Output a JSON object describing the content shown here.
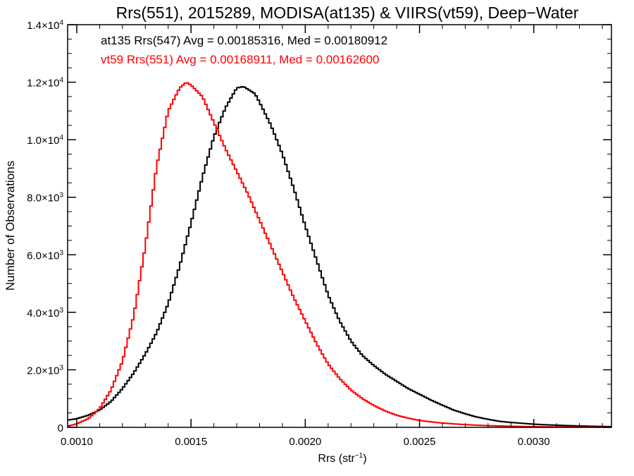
{
  "chart_data": {
    "type": "line",
    "title": "Rrs(551), 2015289, MODISA(at135) & VIIRS(vt59), Deep−Water",
    "xlabel_main": "Rrs (str",
    "xlabel_exp": "−1",
    "xlabel_close": ")",
    "ylabel": "Number of Observations",
    "xlim": [
      0.00096,
      0.00334
    ],
    "ylim": [
      0,
      14000
    ],
    "xticks": [
      {
        "value": 0.001,
        "label": "0.0010"
      },
      {
        "value": 0.0015,
        "label": "0.0015"
      },
      {
        "value": 0.002,
        "label": "0.0020"
      },
      {
        "value": 0.0025,
        "label": "0.0025"
      },
      {
        "value": 0.003,
        "label": "0.0030"
      }
    ],
    "yticks": [
      {
        "value": 0,
        "mant": "0",
        "exp": ""
      },
      {
        "value": 2000,
        "mant": "2.0×10",
        "exp": "3"
      },
      {
        "value": 4000,
        "mant": "4.0×10",
        "exp": "3"
      },
      {
        "value": 6000,
        "mant": "6.0×10",
        "exp": "3"
      },
      {
        "value": 8000,
        "mant": "8.0×10",
        "exp": "3"
      },
      {
        "value": 10000,
        "mant": "1.0×10",
        "exp": "4"
      },
      {
        "value": 12000,
        "mant": "1.2×10",
        "exp": "4"
      },
      {
        "value": 14000,
        "mant": "1.4×10",
        "exp": "4"
      }
    ],
    "grid": false,
    "series": [
      {
        "name": "at135 Rrs(547) Avg = 0.00185316, Med = 0.00180912",
        "color": "#000000",
        "points": [
          [
            0.00096,
            250
          ],
          [
            0.001,
            300
          ],
          [
            0.00105,
            420
          ],
          [
            0.0011,
            600
          ],
          [
            0.00115,
            900
          ],
          [
            0.0012,
            1350
          ],
          [
            0.00125,
            1900
          ],
          [
            0.0013,
            2550
          ],
          [
            0.00135,
            3300
          ],
          [
            0.0014,
            4300
          ],
          [
            0.00145,
            5600
          ],
          [
            0.0015,
            7100
          ],
          [
            0.00155,
            8700
          ],
          [
            0.0016,
            10100
          ],
          [
            0.00165,
            11100
          ],
          [
            0.0017,
            11800
          ],
          [
            0.00173,
            11850
          ],
          [
            0.00175,
            11750
          ],
          [
            0.00178,
            11600
          ],
          [
            0.0018,
            11300
          ],
          [
            0.00185,
            10500
          ],
          [
            0.0019,
            9500
          ],
          [
            0.00195,
            8300
          ],
          [
            0.002,
            7000
          ],
          [
            0.00205,
            5800
          ],
          [
            0.0021,
            4600
          ],
          [
            0.00215,
            3700
          ],
          [
            0.0022,
            3000
          ],
          [
            0.00225,
            2500
          ],
          [
            0.0023,
            2150
          ],
          [
            0.00235,
            1850
          ],
          [
            0.0024,
            1600
          ],
          [
            0.00245,
            1350
          ],
          [
            0.0025,
            1150
          ],
          [
            0.00255,
            950
          ],
          [
            0.0026,
            770
          ],
          [
            0.00265,
            600
          ],
          [
            0.0027,
            470
          ],
          [
            0.00275,
            360
          ],
          [
            0.0028,
            280
          ],
          [
            0.00285,
            210
          ],
          [
            0.0029,
            170
          ],
          [
            0.00295,
            140
          ],
          [
            0.003,
            110
          ],
          [
            0.00305,
            90
          ],
          [
            0.0031,
            75
          ],
          [
            0.00315,
            60
          ],
          [
            0.0032,
            50
          ],
          [
            0.00325,
            40
          ],
          [
            0.0033,
            30
          ],
          [
            0.00334,
            25
          ]
        ]
      },
      {
        "name": "vt59 Rrs(551) Avg = 0.00168911, Med = 0.00162600",
        "color": "#ff0000",
        "points": [
          [
            0.00096,
            40
          ],
          [
            0.001,
            120
          ],
          [
            0.00105,
            300
          ],
          [
            0.0011,
            650
          ],
          [
            0.00115,
            1300
          ],
          [
            0.0012,
            2300
          ],
          [
            0.00125,
            3900
          ],
          [
            0.0013,
            6300
          ],
          [
            0.00135,
            9100
          ],
          [
            0.0014,
            11000
          ],
          [
            0.00145,
            11800
          ],
          [
            0.00148,
            12000
          ],
          [
            0.0015,
            11900
          ],
          [
            0.00155,
            11500
          ],
          [
            0.0016,
            10600
          ],
          [
            0.00165,
            9700
          ],
          [
            0.0017,
            8900
          ],
          [
            0.00175,
            8100
          ],
          [
            0.0018,
            7200
          ],
          [
            0.00185,
            6300
          ],
          [
            0.0019,
            5400
          ],
          [
            0.00195,
            4500
          ],
          [
            0.002,
            3700
          ],
          [
            0.00205,
            2900
          ],
          [
            0.0021,
            2200
          ],
          [
            0.00215,
            1700
          ],
          [
            0.0022,
            1300
          ],
          [
            0.00225,
            1000
          ],
          [
            0.0023,
            760
          ],
          [
            0.00235,
            570
          ],
          [
            0.0024,
            420
          ],
          [
            0.00245,
            320
          ],
          [
            0.0025,
            240
          ],
          [
            0.00255,
            190
          ],
          [
            0.0026,
            150
          ],
          [
            0.00265,
            120
          ],
          [
            0.0027,
            95
          ],
          [
            0.00275,
            75
          ],
          [
            0.0028,
            60
          ],
          [
            0.00285,
            48
          ],
          [
            0.0029,
            38
          ],
          [
            0.00295,
            30
          ],
          [
            0.003,
            24
          ],
          [
            0.0031,
            15
          ],
          [
            0.0032,
            10
          ],
          [
            0.00334,
            5
          ]
        ]
      }
    ]
  }
}
